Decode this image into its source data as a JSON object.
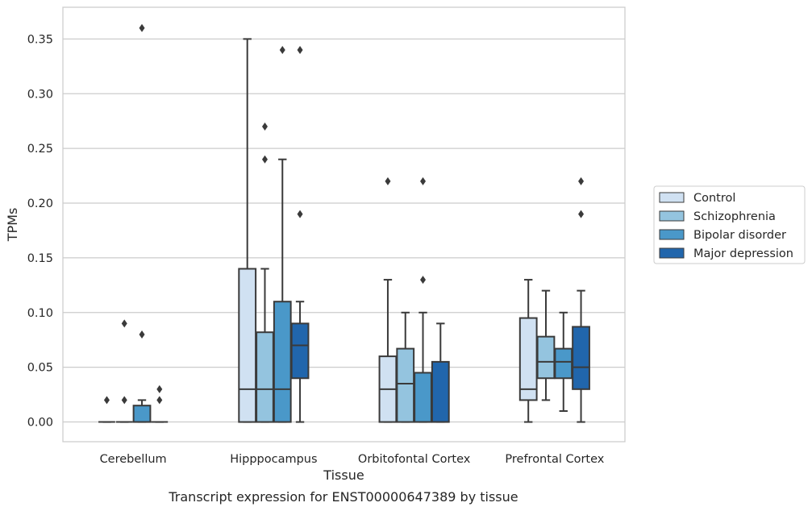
{
  "chart_data": {
    "type": "box",
    "caption": "Transcript expression for ENST00000647389 by tissue",
    "xlabel": "Tissue",
    "ylabel": "TPMs",
    "ylim": [
      -0.018,
      0.379
    ],
    "yticks": [
      0.0,
      0.05,
      0.1,
      0.15,
      0.2,
      0.25,
      0.3,
      0.35
    ],
    "ytick_labels": [
      "0.00",
      "0.05",
      "0.10",
      "0.15",
      "0.20",
      "0.25",
      "0.30",
      "0.35"
    ],
    "grid": "horizontal",
    "legend_position": "right",
    "categories": [
      "Cerebellum",
      "Hipppocampus",
      "Orbitofontal Cortex",
      "Prefrontal Cortex"
    ],
    "series": [
      {
        "name": "Control",
        "color": "#d0e1f2",
        "boxes": [
          {
            "whislo": 0.0,
            "q1": 0.0,
            "med": 0.0,
            "q3": 0.0,
            "whishi": 0.0,
            "fliers": [
              0.02
            ]
          },
          {
            "whislo": 0.0,
            "q1": 0.0,
            "med": 0.03,
            "q3": 0.14,
            "whishi": 0.35,
            "fliers": []
          },
          {
            "whislo": 0.0,
            "q1": 0.0,
            "med": 0.03,
            "q3": 0.06,
            "whishi": 0.13,
            "fliers": [
              0.22
            ]
          },
          {
            "whislo": 0.0,
            "q1": 0.02,
            "med": 0.03,
            "q3": 0.095,
            "whishi": 0.13,
            "fliers": []
          }
        ]
      },
      {
        "name": "Schizophrenia",
        "color": "#94c4df",
        "boxes": [
          {
            "whislo": 0.0,
            "q1": 0.0,
            "med": 0.0,
            "q3": 0.0,
            "whishi": 0.0,
            "fliers": [
              0.02,
              0.09
            ]
          },
          {
            "whislo": 0.0,
            "q1": 0.0,
            "med": 0.03,
            "q3": 0.082,
            "whishi": 0.14,
            "fliers": [
              0.24,
              0.27
            ]
          },
          {
            "whislo": 0.0,
            "q1": 0.0,
            "med": 0.035,
            "q3": 0.067,
            "whishi": 0.1,
            "fliers": []
          },
          {
            "whislo": 0.02,
            "q1": 0.04,
            "med": 0.055,
            "q3": 0.078,
            "whishi": 0.12,
            "fliers": []
          }
        ]
      },
      {
        "name": "Bipolar disorder",
        "color": "#4a98c9",
        "boxes": [
          {
            "whislo": 0.0,
            "q1": 0.0,
            "med": 0.0,
            "q3": 0.015,
            "whishi": 0.02,
            "fliers": [
              0.08,
              0.36
            ]
          },
          {
            "whislo": 0.0,
            "q1": 0.0,
            "med": 0.03,
            "q3": 0.11,
            "whishi": 0.24,
            "fliers": [
              0.34
            ]
          },
          {
            "whislo": 0.0,
            "q1": 0.0,
            "med": 0.0,
            "q3": 0.045,
            "whishi": 0.1,
            "fliers": [
              0.13,
              0.22
            ]
          },
          {
            "whislo": 0.01,
            "q1": 0.04,
            "med": 0.055,
            "q3": 0.067,
            "whishi": 0.1,
            "fliers": []
          }
        ]
      },
      {
        "name": "Major depression",
        "color": "#2166ac",
        "boxes": [
          {
            "whislo": 0.0,
            "q1": 0.0,
            "med": 0.0,
            "q3": 0.0,
            "whishi": 0.0,
            "fliers": [
              0.02,
              0.03
            ]
          },
          {
            "whislo": 0.0,
            "q1": 0.04,
            "med": 0.07,
            "q3": 0.09,
            "whishi": 0.11,
            "fliers": [
              0.19,
              0.34
            ]
          },
          {
            "whislo": 0.0,
            "q1": 0.0,
            "med": 0.0,
            "q3": 0.055,
            "whishi": 0.09,
            "fliers": []
          },
          {
            "whislo": 0.0,
            "q1": 0.03,
            "med": 0.05,
            "q3": 0.087,
            "whishi": 0.12,
            "fliers": [
              0.19,
              0.22
            ]
          }
        ]
      }
    ]
  }
}
